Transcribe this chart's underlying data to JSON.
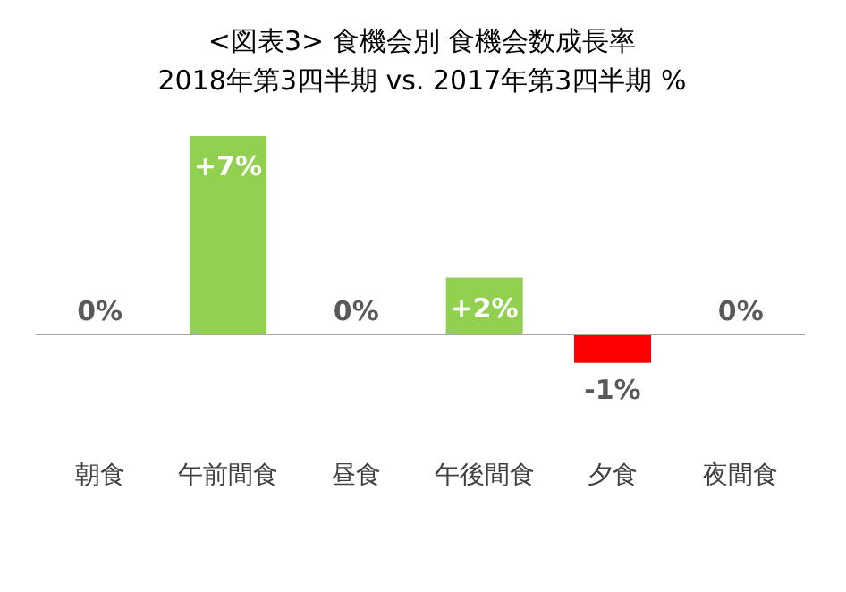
{
  "chart_data": {
    "type": "bar",
    "title": "<図表3> 食機会別 食機会数成長率",
    "subtitle": "2018年第3四半期 vs. 2017年第3四半期 %",
    "categories": [
      "朝食",
      "午前間食",
      "昼食",
      "午後間食",
      "夕食",
      "夜間食"
    ],
    "values": [
      0,
      7,
      0,
      2,
      -1,
      0
    ],
    "colors": [
      "#92d050",
      "#92d050",
      "#92d050",
      "#92d050",
      "#ff0000",
      "#92d050"
    ],
    "value_labels": [
      "0%",
      "+7%",
      "0%",
      "+2%",
      "-1%",
      "0%"
    ]
  }
}
